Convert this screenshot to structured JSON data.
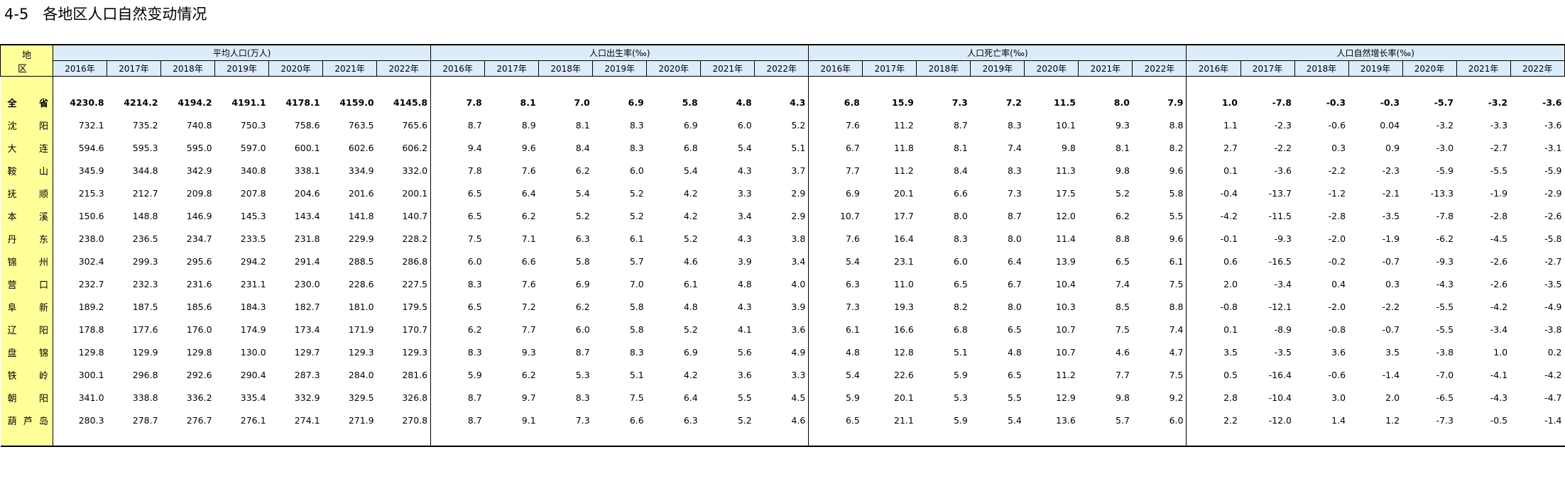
{
  "title": "4-5   各地区人口自然变动情况",
  "header": {
    "region_label": "地 区",
    "groups": [
      {
        "label": "平均人口(万人)"
      },
      {
        "label": "人口出生率(‰)"
      },
      {
        "label": "人口死亡率(‰)"
      },
      {
        "label": "人口自然增长率(‰)"
      }
    ],
    "years": [
      "2016年",
      "2017年",
      "2018年",
      "2019年",
      "2020年",
      "2021年",
      "2022年"
    ]
  },
  "rows": [
    {
      "region": "全省",
      "values": [
        "4230.8",
        "4214.2",
        "4194.2",
        "4191.1",
        "4178.1",
        "4159.0",
        "4145.8",
        "7.8",
        "8.1",
        "7.0",
        "6.9",
        "5.8",
        "4.8",
        "4.3",
        "6.8",
        "15.9",
        "7.3",
        "7.2",
        "11.5",
        "8.0",
        "7.9",
        "1.0",
        "-7.8",
        "-0.3",
        "-0.3",
        "-5.7",
        "-3.2",
        "-3.6"
      ]
    },
    {
      "region": "沈阳",
      "values": [
        "732.1",
        "735.2",
        "740.8",
        "750.3",
        "758.6",
        "763.5",
        "765.6",
        "8.7",
        "8.9",
        "8.1",
        "8.3",
        "6.9",
        "6.0",
        "5.2",
        "7.6",
        "11.2",
        "8.7",
        "8.3",
        "10.1",
        "9.3",
        "8.8",
        "1.1",
        "-2.3",
        "-0.6",
        "0.04",
        "-3.2",
        "-3.3",
        "-3.6"
      ]
    },
    {
      "region": "大连",
      "values": [
        "594.6",
        "595.3",
        "595.0",
        "597.0",
        "600.1",
        "602.6",
        "606.2",
        "9.4",
        "9.6",
        "8.4",
        "8.3",
        "6.8",
        "5.4",
        "5.1",
        "6.7",
        "11.8",
        "8.1",
        "7.4",
        "9.8",
        "8.1",
        "8.2",
        "2.7",
        "-2.2",
        "0.3",
        "0.9",
        "-3.0",
        "-2.7",
        "-3.1"
      ]
    },
    {
      "region": "鞍山",
      "values": [
        "345.9",
        "344.8",
        "342.9",
        "340.8",
        "338.1",
        "334.9",
        "332.0",
        "7.8",
        "7.6",
        "6.2",
        "6.0",
        "5.4",
        "4.3",
        "3.7",
        "7.7",
        "11.2",
        "8.4",
        "8.3",
        "11.3",
        "9.8",
        "9.6",
        "0.1",
        "-3.6",
        "-2.2",
        "-2.3",
        "-5.9",
        "-5.5",
        "-5.9"
      ]
    },
    {
      "region": "抚顺",
      "values": [
        "215.3",
        "212.7",
        "209.8",
        "207.8",
        "204.6",
        "201.6",
        "200.1",
        "6.5",
        "6.4",
        "5.4",
        "5.2",
        "4.2",
        "3.3",
        "2.9",
        "6.9",
        "20.1",
        "6.6",
        "7.3",
        "17.5",
        "5.2",
        "5.8",
        "-0.4",
        "-13.7",
        "-1.2",
        "-2.1",
        "-13.3",
        "-1.9",
        "-2.9"
      ]
    },
    {
      "region": "本溪",
      "values": [
        "150.6",
        "148.8",
        "146.9",
        "145.3",
        "143.4",
        "141.8",
        "140.7",
        "6.5",
        "6.2",
        "5.2",
        "5.2",
        "4.2",
        "3.4",
        "2.9",
        "10.7",
        "17.7",
        "8.0",
        "8.7",
        "12.0",
        "6.2",
        "5.5",
        "-4.2",
        "-11.5",
        "-2.8",
        "-3.5",
        "-7.8",
        "-2.8",
        "-2.6"
      ]
    },
    {
      "region": "丹东",
      "values": [
        "238.0",
        "236.5",
        "234.7",
        "233.5",
        "231.8",
        "229.9",
        "228.2",
        "7.5",
        "7.1",
        "6.3",
        "6.1",
        "5.2",
        "4.3",
        "3.8",
        "7.6",
        "16.4",
        "8.3",
        "8.0",
        "11.4",
        "8.8",
        "9.6",
        "-0.1",
        "-9.3",
        "-2.0",
        "-1.9",
        "-6.2",
        "-4.5",
        "-5.8"
      ]
    },
    {
      "region": "锦州",
      "values": [
        "302.4",
        "299.3",
        "295.6",
        "294.2",
        "291.4",
        "288.5",
        "286.8",
        "6.0",
        "6.6",
        "5.8",
        "5.7",
        "4.6",
        "3.9",
        "3.4",
        "5.4",
        "23.1",
        "6.0",
        "6.4",
        "13.9",
        "6.5",
        "6.1",
        "0.6",
        "-16.5",
        "-0.2",
        "-0.7",
        "-9.3",
        "-2.6",
        "-2.7"
      ]
    },
    {
      "region": "营口",
      "values": [
        "232.7",
        "232.3",
        "231.6",
        "231.1",
        "230.0",
        "228.6",
        "227.5",
        "8.3",
        "7.6",
        "6.9",
        "7.0",
        "6.1",
        "4.8",
        "4.0",
        "6.3",
        "11.0",
        "6.5",
        "6.7",
        "10.4",
        "7.4",
        "7.5",
        "2.0",
        "-3.4",
        "0.4",
        "0.3",
        "-4.3",
        "-2.6",
        "-3.5"
      ]
    },
    {
      "region": "阜新",
      "values": [
        "189.2",
        "187.5",
        "185.6",
        "184.3",
        "182.7",
        "181.0",
        "179.5",
        "6.5",
        "7.2",
        "6.2",
        "5.8",
        "4.8",
        "4.3",
        "3.9",
        "7.3",
        "19.3",
        "8.2",
        "8.0",
        "10.3",
        "8.5",
        "8.8",
        "-0.8",
        "-12.1",
        "-2.0",
        "-2.2",
        "-5.5",
        "-4.2",
        "-4.9"
      ]
    },
    {
      "region": "辽阳",
      "values": [
        "178.8",
        "177.6",
        "176.0",
        "174.9",
        "173.4",
        "171.9",
        "170.7",
        "6.2",
        "7.7",
        "6.0",
        "5.8",
        "5.2",
        "4.1",
        "3.6",
        "6.1",
        "16.6",
        "6.8",
        "6.5",
        "10.7",
        "7.5",
        "7.4",
        "0.1",
        "-8.9",
        "-0.8",
        "-0.7",
        "-5.5",
        "-3.4",
        "-3.8"
      ]
    },
    {
      "region": "盘锦",
      "values": [
        "129.8",
        "129.9",
        "129.8",
        "130.0",
        "129.7",
        "129.3",
        "129.3",
        "8.3",
        "9.3",
        "8.7",
        "8.3",
        "6.9",
        "5.6",
        "4.9",
        "4.8",
        "12.8",
        "5.1",
        "4.8",
        "10.7",
        "4.6",
        "4.7",
        "3.5",
        "-3.5",
        "3.6",
        "3.5",
        "-3.8",
        "1.0",
        "0.2"
      ]
    },
    {
      "region": "铁岭",
      "values": [
        "300.1",
        "296.8",
        "292.6",
        "290.4",
        "287.3",
        "284.0",
        "281.6",
        "5.9",
        "6.2",
        "5.3",
        "5.1",
        "4.2",
        "3.6",
        "3.3",
        "5.4",
        "22.6",
        "5.9",
        "6.5",
        "11.2",
        "7.7",
        "7.5",
        "0.5",
        "-16.4",
        "-0.6",
        "-1.4",
        "-7.0",
        "-4.1",
        "-4.2"
      ]
    },
    {
      "region": "朝阳",
      "values": [
        "341.0",
        "338.8",
        "336.2",
        "335.4",
        "332.9",
        "329.5",
        "326.8",
        "8.7",
        "9.7",
        "8.3",
        "7.5",
        "6.4",
        "5.5",
        "4.5",
        "5.9",
        "20.1",
        "5.3",
        "5.5",
        "12.9",
        "9.8",
        "9.2",
        "2.8",
        "-10.4",
        "3.0",
        "2.0",
        "-6.5",
        "-4.3",
        "-4.7"
      ]
    },
    {
      "region": "葫芦岛",
      "values": [
        "280.3",
        "278.7",
        "276.7",
        "276.1",
        "274.1",
        "271.9",
        "270.8",
        "8.7",
        "9.1",
        "7.3",
        "6.6",
        "6.3",
        "5.2",
        "4.6",
        "6.5",
        "21.1",
        "5.9",
        "5.4",
        "13.6",
        "5.7",
        "6.0",
        "2.2",
        "-12.0",
        "1.4",
        "1.2",
        "-7.3",
        "-0.5",
        "-1.4"
      ]
    }
  ]
}
